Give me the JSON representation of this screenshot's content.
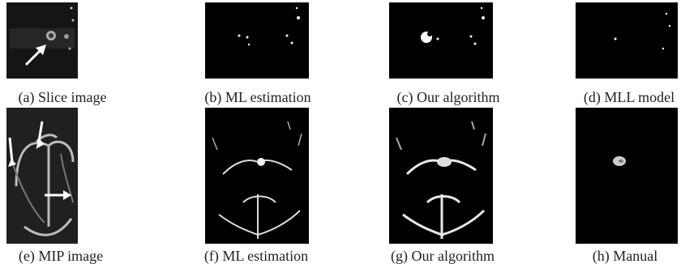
{
  "figures": [
    {
      "caption": "(a) Slice image"
    },
    {
      "caption": "(b) ML estimation"
    },
    {
      "caption": "(c) Our algorithm"
    },
    {
      "caption": "(d) MLL model"
    },
    {
      "caption": "(e) MIP image"
    },
    {
      "caption": "(f) ML estimation"
    },
    {
      "caption": "(g) Our algorithm"
    },
    {
      "caption": "(h) Manual"
    }
  ]
}
